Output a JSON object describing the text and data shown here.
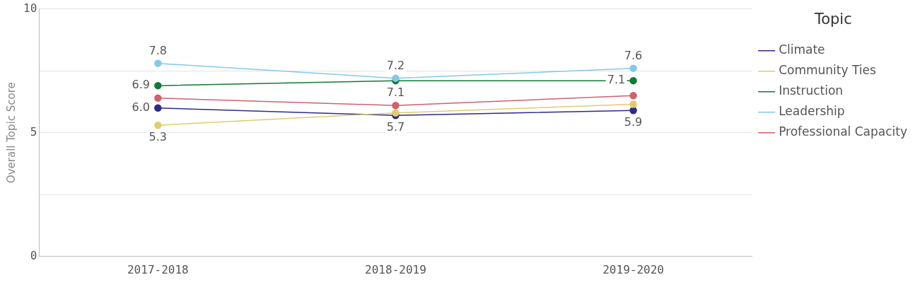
{
  "chart_data": {
    "type": "line",
    "ylabel": "Overall Topic Score",
    "legend_title": "Topic",
    "categories": [
      "2017-2018",
      "2018-2019",
      "2019-2020"
    ],
    "series": [
      {
        "name": "Climate",
        "color": "#2e2a8a",
        "values": [
          6.0,
          5.7,
          5.9
        ],
        "value_labels": [
          "6.0",
          "5.7",
          "5.9"
        ]
      },
      {
        "name": "Community Ties",
        "color": "#e0cc6e",
        "values": [
          5.3,
          5.8,
          6.15
        ],
        "value_labels": [
          "5.3",
          null,
          null
        ]
      },
      {
        "name": "Instruction",
        "color": "#127a35",
        "values": [
          6.9,
          7.1,
          7.1
        ],
        "value_labels": [
          "6.9",
          "7.1",
          "7.1"
        ]
      },
      {
        "name": "Leadership",
        "color": "#84c9ea",
        "values": [
          7.8,
          7.2,
          7.6
        ],
        "value_labels": [
          "7.8",
          "7.2",
          "7.6"
        ]
      },
      {
        "name": "Professional Capacity",
        "color": "#cf6170",
        "values": [
          6.4,
          6.1,
          6.5
        ],
        "value_labels": [
          null,
          null,
          null
        ]
      }
    ],
    "ylim": [
      0,
      10
    ],
    "yticks": [
      0,
      {
        "value": 2.5,
        "label": null
      },
      5,
      {
        "value": 7.5,
        "label": null
      },
      10
    ],
    "grid": "y",
    "legend": "right",
    "marker": "circle"
  }
}
